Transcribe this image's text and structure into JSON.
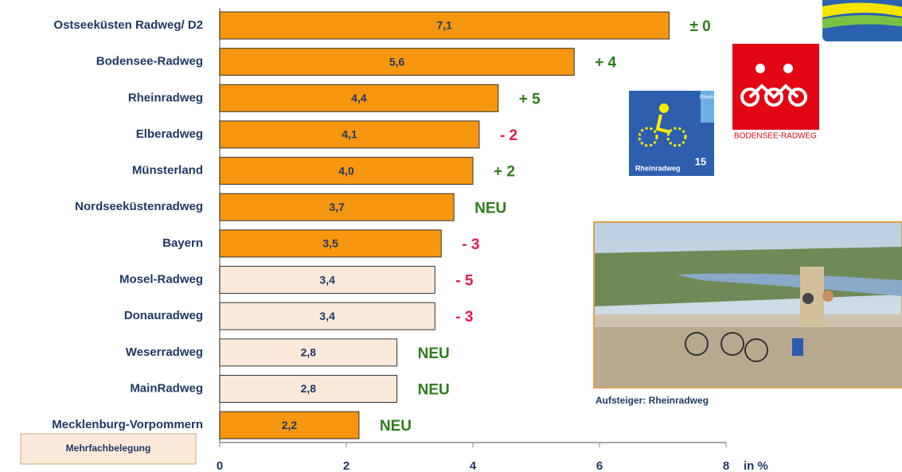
{
  "chart_data": {
    "type": "bar",
    "orientation": "horizontal",
    "categories": [
      "Ostseeküsten Radweg/ D2",
      "Bodensee-Radweg",
      "Rheinradweg",
      "Elberadweg",
      "Münsterland",
      "Nordseeküstenradweg",
      "Bayern",
      "Mosel-Radweg",
      "Donauradweg",
      "Weserradweg",
      "MainRadweg",
      "Mecklenburg-Vorpommern"
    ],
    "values": [
      7.1,
      5.6,
      4.4,
      4.1,
      4.0,
      3.7,
      3.5,
      3.4,
      3.4,
      2.8,
      2.8,
      2.2
    ],
    "value_labels": [
      "7,1",
      "5,6",
      "4,4",
      "4,1",
      "4,0",
      "3,7",
      "3,5",
      "3,4",
      "3,4",
      "2,8",
      "2,8",
      "2,2"
    ],
    "bar_colors": [
      "#f7960f",
      "#f7960f",
      "#f7960f",
      "#f7960f",
      "#f7960f",
      "#f7960f",
      "#f7960f",
      "#fde9d9",
      "#fde9d9",
      "#fde9d9",
      "#fde9d9",
      "#f7960f"
    ],
    "annotations": [
      "± 0",
      "+ 4",
      "+ 5",
      "- 2",
      "+ 2",
      "NEU",
      "- 3",
      "- 5",
      "- 3",
      "NEU",
      "NEU",
      "NEU"
    ],
    "annotation_colors": [
      "#2e7d1a",
      "#2e7d1a",
      "#2e7d1a",
      "#e8194b",
      "#2e7d1a",
      "#2e7d1a",
      "#e8194b",
      "#e8194b",
      "#e8194b",
      "#2e7d1a",
      "#2e7d1a",
      "#2e7d1a"
    ],
    "xlim": [
      0,
      8
    ],
    "xticks": [
      0,
      2,
      4,
      6,
      8
    ],
    "x_label": "in %",
    "legend": {
      "label": "Mehrfachbelegung",
      "color": "#fde9d9"
    },
    "photo_caption": "Aufsteiger: Rheinradweg",
    "logo_texts": [
      "Rhein",
      "Rheinradweg",
      "15",
      "BODENSEE-RADWEG"
    ]
  }
}
